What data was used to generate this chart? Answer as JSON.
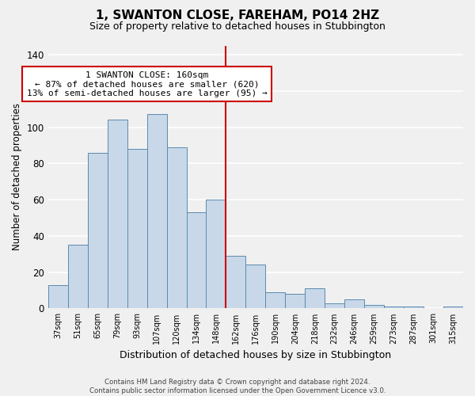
{
  "title": "1, SWANTON CLOSE, FAREHAM, PO14 2HZ",
  "subtitle": "Size of property relative to detached houses in Stubbington",
  "xlabel": "Distribution of detached houses by size in Stubbington",
  "ylabel": "Number of detached properties",
  "footer_line1": "Contains HM Land Registry data © Crown copyright and database right 2024.",
  "footer_line2": "Contains public sector information licensed under the Open Government Licence v3.0.",
  "bins": [
    "37sqm",
    "51sqm",
    "65sqm",
    "79sqm",
    "93sqm",
    "107sqm",
    "120sqm",
    "134sqm",
    "148sqm",
    "162sqm",
    "176sqm",
    "190sqm",
    "204sqm",
    "218sqm",
    "232sqm",
    "246sqm",
    "259sqm",
    "273sqm",
    "287sqm",
    "301sqm",
    "315sqm"
  ],
  "values": [
    13,
    35,
    86,
    104,
    88,
    107,
    89,
    53,
    60,
    29,
    24,
    9,
    8,
    11,
    3,
    5,
    2,
    1,
    1,
    0,
    1
  ],
  "bar_color": "#c8d8e8",
  "bar_edge_color": "#5a8ab0",
  "vline_color": "#cc0000",
  "annotation_title": "1 SWANTON CLOSE: 160sqm",
  "annotation_line1": "← 87% of detached houses are smaller (620)",
  "annotation_line2": "13% of semi-detached houses are larger (95) →",
  "annotation_box_color": "white",
  "annotation_box_edge": "#cc0000",
  "ylim": [
    0,
    145
  ],
  "yticks": [
    0,
    20,
    40,
    60,
    80,
    100,
    120,
    140
  ],
  "background_color": "#f0f0f0",
  "grid_color": "white"
}
